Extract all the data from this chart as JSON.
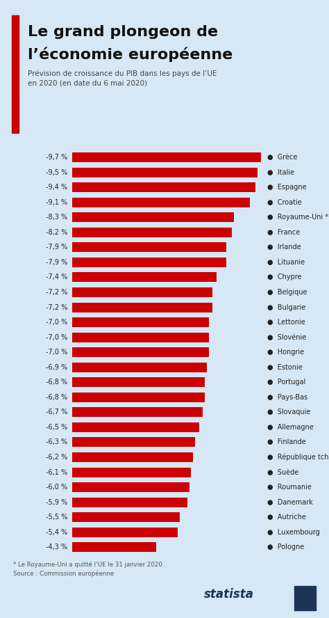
{
  "title_line1": "Le grand plongeon de",
  "title_line2": "l’économie européenne",
  "subtitle": "Prévision de croissance du PIB dans les pays de l’UE\nen 2020 (en date du 6 mai 2020)",
  "footnote": "* Le Royaume-Uni a quitté l’UE le 31 janvier 2020.\nSource : Commission européenne",
  "background_color": "#d6e8f5",
  "bar_color": "#cc0000",
  "title_color": "#111111",
  "subtitle_color": "#444444",
  "label_color": "#222222",
  "footnote_color": "#555555",
  "accent_color": "#cc0000",
  "statista_color": "#1c3557",
  "countries": [
    "Grèce",
    "Italie",
    "Espagne",
    "Croatie",
    "Royaume-Uni *",
    "France",
    "Irlande",
    "Lituanie",
    "Chypre",
    "Belgique",
    "Bulgarie",
    "Lettonie",
    "Slovénie",
    "Hongrie",
    "Estonie",
    "Portugal",
    "Pays-Bas",
    "Slovaquie",
    "Allemagne",
    "Finlande",
    "République tchèque",
    "Suède",
    "Roumanie",
    "Danemark",
    "Autriche",
    "Luxembourg",
    "Pologne"
  ],
  "values": [
    -9.7,
    -9.5,
    -9.4,
    -9.1,
    -8.3,
    -8.2,
    -7.9,
    -7.9,
    -7.4,
    -7.2,
    -7.2,
    -7.0,
    -7.0,
    -7.0,
    -6.9,
    -6.8,
    -6.8,
    -6.7,
    -6.5,
    -6.3,
    -6.2,
    -6.1,
    -6.0,
    -5.9,
    -5.5,
    -5.4,
    -4.3
  ],
  "value_labels": [
    "-9,7 %",
    "-9,5 %",
    "-9,4 %",
    "-9,1 %",
    "-8,3 %",
    "-8,2 %",
    "-7,9 %",
    "-7,9 %",
    "-7,4 %",
    "-7,2 %",
    "-7,2 %",
    "-7,0 %",
    "-7,0 %",
    "-7,0 %",
    "-6,9 %",
    "-6,8 %",
    "-6,8 %",
    "-6,7 %",
    "-6,5 %",
    "-6,3 %",
    "-6,2 %",
    "-6,1 %",
    "-6,0 %",
    "-5,9 %",
    "-5,5 %",
    "-5,4 %",
    "-4,3 %"
  ],
  "fig_width": 4.74,
  "fig_height": 8.88,
  "dpi": 100
}
